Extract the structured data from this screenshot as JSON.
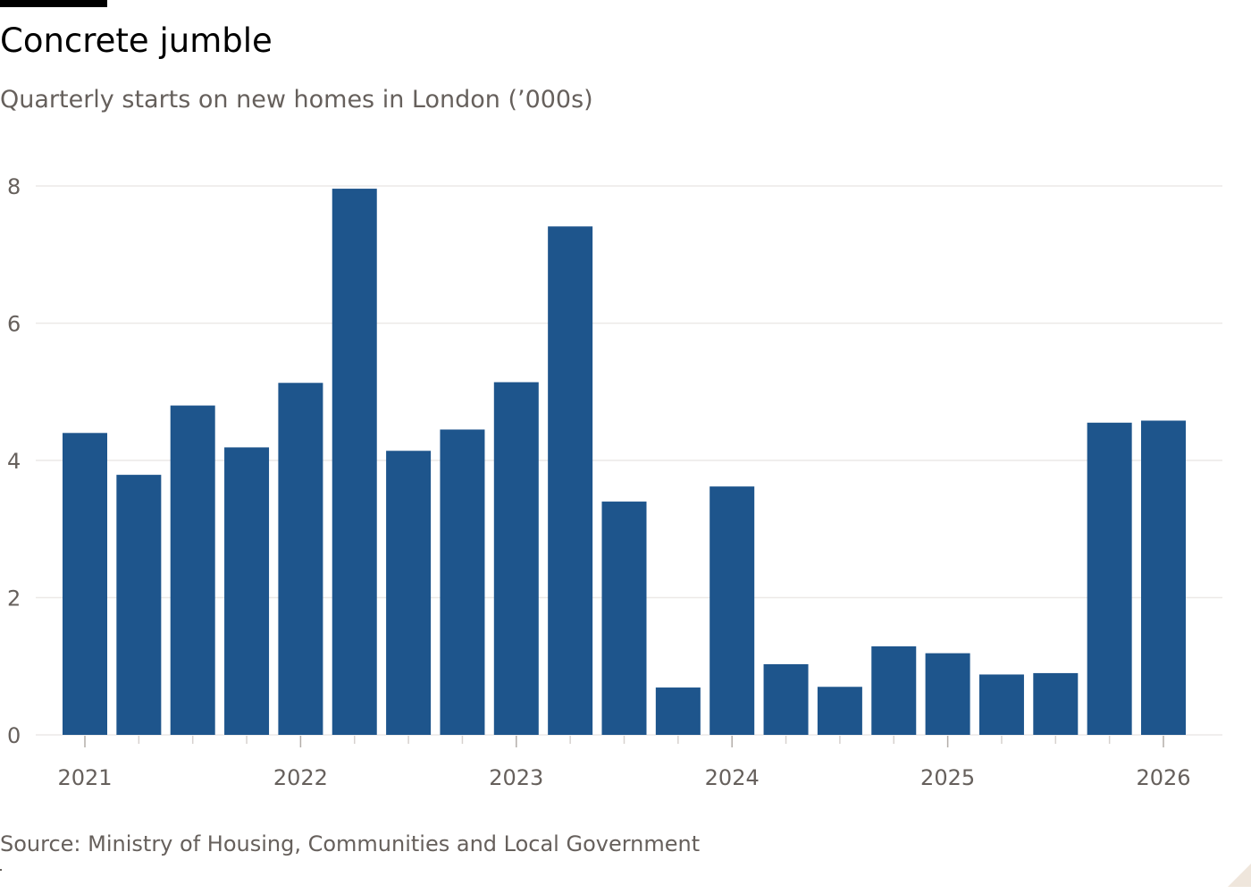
{
  "header": {
    "title": "Concrete jumble",
    "subtitle": "Quarterly starts on new homes in London (’000s)"
  },
  "footer": {
    "source": "Source: Ministry of Housing, Communities and Local Government"
  },
  "colors": {
    "bar": "#1e558c",
    "grid": "#ece9e7",
    "axis_text": "#66605c",
    "title": "#000000"
  },
  "chart_data": {
    "type": "bar",
    "title": "Concrete jumble",
    "subtitle": "Quarterly starts on new homes in London (’000s)",
    "xlabel": "",
    "ylabel": "",
    "ylim": [
      0,
      8
    ],
    "yticks": [
      0,
      2,
      4,
      6,
      8
    ],
    "grid": true,
    "legend": "none",
    "categories": [
      "2021 Q1",
      "2021 Q2",
      "2021 Q3",
      "2021 Q4",
      "2022 Q1",
      "2022 Q2",
      "2022 Q3",
      "2022 Q4",
      "2023 Q1",
      "2023 Q2",
      "2023 Q3",
      "2023 Q4",
      "2024 Q1",
      "2024 Q2",
      "2024 Q3",
      "2024 Q4",
      "2025 Q1",
      "2025 Q2",
      "2025 Q3",
      "2025 Q4",
      "2026 Q1"
    ],
    "values": [
      4.4,
      3.79,
      4.8,
      4.19,
      5.13,
      7.96,
      4.14,
      4.45,
      5.14,
      7.41,
      3.4,
      0.69,
      3.62,
      1.03,
      0.7,
      1.29,
      1.19,
      0.88,
      0.9,
      4.55,
      4.58
    ],
    "xtick_labels": [
      "2021",
      "2022",
      "2023",
      "2024",
      "2025",
      "2026"
    ],
    "xtick_positions": [
      0,
      4,
      8,
      12,
      16,
      20
    ]
  }
}
